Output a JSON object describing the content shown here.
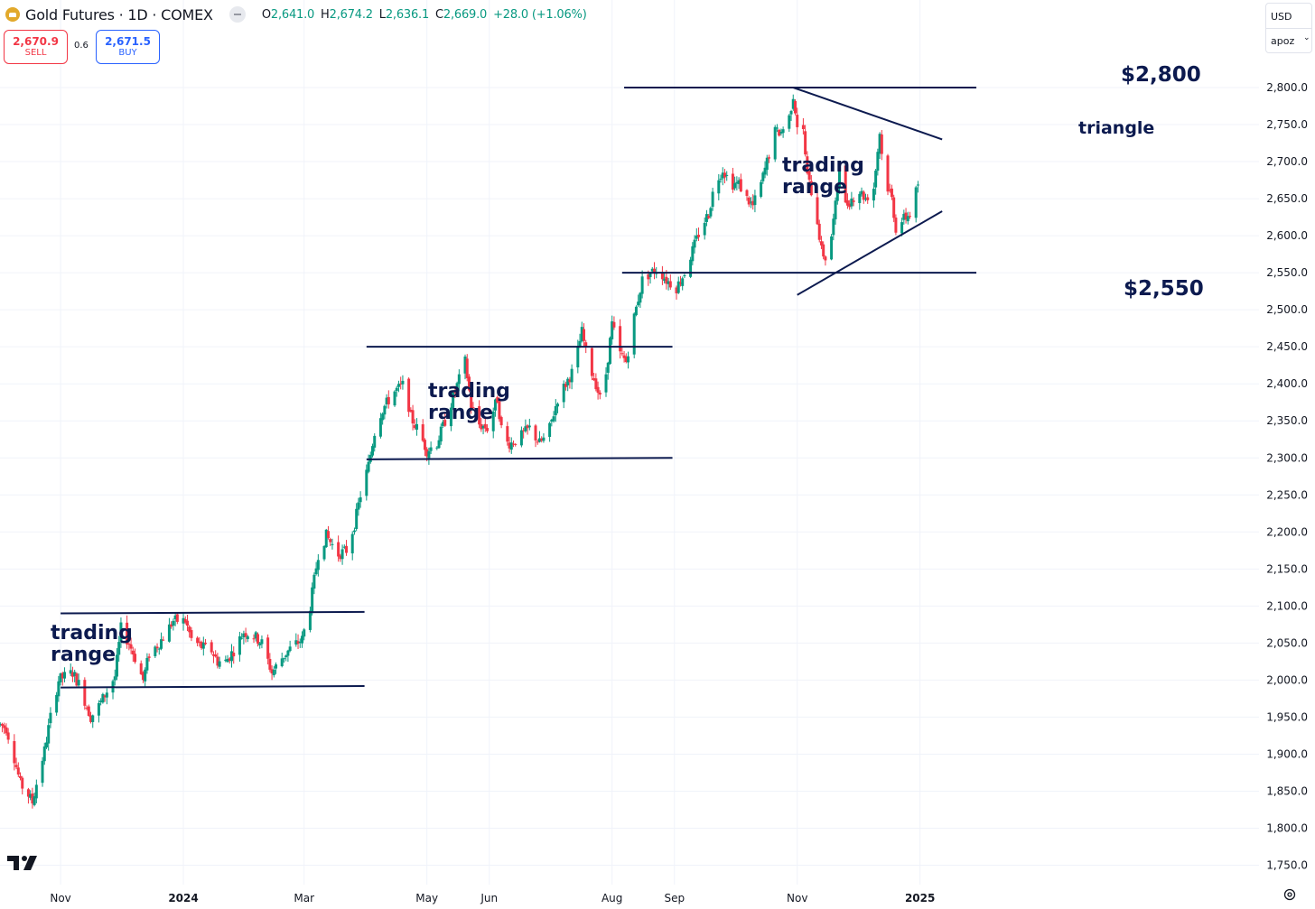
{
  "header": {
    "symbol_title": "Gold Futures · 1D · COMEX",
    "ohlc": {
      "open_label": "O",
      "open": "2,641.0",
      "high_label": "H",
      "high": "2,674.2",
      "low_label": "L",
      "low": "2,636.1",
      "close_label": "C",
      "close": "2,669.0",
      "change": "+28.0 (+1.06%)"
    }
  },
  "trade": {
    "sell_price": "2,670.9",
    "sell_label": "SELL",
    "spread": "0.6",
    "buy_price": "2,671.5",
    "buy_label": "BUY"
  },
  "controls": {
    "currency": "USD",
    "scale": "apoz"
  },
  "annotations": {
    "range1": [
      "trading",
      "range"
    ],
    "range2": [
      "trading",
      "range"
    ],
    "range3": [
      "trading",
      "range"
    ],
    "triangle": "triangle",
    "level_high": "$2,800",
    "level_low": "$2,550"
  },
  "colors": {
    "up": "#089981",
    "down": "#f23645",
    "annotation": "#0c1a4f",
    "grid": "#f0f3fa"
  },
  "chart_data": {
    "type": "candlestick",
    "title": "Gold Futures · 1D · COMEX",
    "y_ticks": [
      1750,
      1800,
      1850,
      1900,
      1950,
      2000,
      2050,
      2100,
      2150,
      2200,
      2250,
      2300,
      2350,
      2400,
      2450,
      2500,
      2550,
      2600,
      2650,
      2700,
      2750,
      2800
    ],
    "x_ticks": [
      {
        "label": "Nov",
        "date": "2023-11-01"
      },
      {
        "label": "2024",
        "date": "2024-01-01"
      },
      {
        "label": "Mar",
        "date": "2024-03-01"
      },
      {
        "label": "May",
        "date": "2024-05-01"
      },
      {
        "label": "Jun",
        "date": "2024-06-01"
      },
      {
        "label": "Aug",
        "date": "2024-08-01"
      },
      {
        "label": "Sep",
        "date": "2024-09-01"
      },
      {
        "label": "Nov",
        "date": "2024-11-01"
      },
      {
        "label": "2025",
        "date": "2025-01-01"
      }
    ],
    "grid": true,
    "close_path": [
      [
        "2023-10-02",
        1940
      ],
      [
        "2023-10-05",
        1935
      ],
      [
        "2023-10-09",
        1895
      ],
      [
        "2023-10-12",
        1860
      ],
      [
        "2023-10-16",
        1845
      ],
      [
        "2023-10-18",
        1835
      ],
      [
        "2023-10-20",
        1860
      ],
      [
        "2023-10-24",
        1905
      ],
      [
        "2023-10-27",
        1950
      ],
      [
        "2023-10-31",
        2000
      ],
      [
        "2023-11-03",
        2005
      ],
      [
        "2023-11-07",
        2010
      ],
      [
        "2023-11-10",
        1995
      ],
      [
        "2023-11-14",
        1965
      ],
      [
        "2023-11-16",
        1950
      ],
      [
        "2023-11-20",
        1965
      ],
      [
        "2023-11-24",
        1985
      ],
      [
        "2023-11-28",
        2005
      ],
      [
        "2023-12-01",
        2070
      ],
      [
        "2023-12-05",
        2050
      ],
      [
        "2023-12-08",
        2030
      ],
      [
        "2023-12-12",
        2000
      ],
      [
        "2023-12-15",
        2035
      ],
      [
        "2023-12-20",
        2050
      ],
      [
        "2023-12-27",
        2080
      ],
      [
        "2024-01-02",
        2080
      ],
      [
        "2024-01-05",
        2055
      ],
      [
        "2024-01-10",
        2045
      ],
      [
        "2024-01-15",
        2040
      ],
      [
        "2024-01-18",
        2025
      ],
      [
        "2024-01-22",
        2025
      ],
      [
        "2024-01-26",
        2040
      ],
      [
        "2024-01-31",
        2065
      ],
      [
        "2024-02-05",
        2060
      ],
      [
        "2024-02-09",
        2050
      ],
      [
        "2024-02-14",
        2010
      ],
      [
        "2024-02-19",
        2030
      ],
      [
        "2024-02-24",
        2045
      ],
      [
        "2024-02-29",
        2055
      ],
      [
        "2024-03-04",
        2100
      ],
      [
        "2024-03-08",
        2170
      ],
      [
        "2024-03-12",
        2195
      ],
      [
        "2024-03-18",
        2170
      ],
      [
        "2024-03-22",
        2175
      ],
      [
        "2024-03-26",
        2210
      ],
      [
        "2024-03-29",
        2250
      ],
      [
        "2024-04-02",
        2290
      ],
      [
        "2024-04-06",
        2350
      ],
      [
        "2024-04-10",
        2370
      ],
      [
        "2024-04-15",
        2390
      ],
      [
        "2024-04-20",
        2400
      ],
      [
        "2024-04-23",
        2355
      ],
      [
        "2024-04-27",
        2335
      ],
      [
        "2024-05-01",
        2310
      ],
      [
        "2024-05-06",
        2320
      ],
      [
        "2024-05-10",
        2350
      ],
      [
        "2024-05-15",
        2390
      ],
      [
        "2024-05-20",
        2430
      ],
      [
        "2024-05-23",
        2370
      ],
      [
        "2024-05-27",
        2345
      ],
      [
        "2024-05-31",
        2340
      ],
      [
        "2024-06-05",
        2380
      ],
      [
        "2024-06-08",
        2320
      ],
      [
        "2024-06-12",
        2320
      ],
      [
        "2024-06-17",
        2330
      ],
      [
        "2024-06-21",
        2340
      ],
      [
        "2024-06-26",
        2320
      ],
      [
        "2024-06-30",
        2330
      ],
      [
        "2024-07-05",
        2380
      ],
      [
        "2024-07-09",
        2400
      ],
      [
        "2024-07-13",
        2420
      ],
      [
        "2024-07-17",
        2470
      ],
      [
        "2024-07-20",
        2430
      ],
      [
        "2024-07-24",
        2400
      ],
      [
        "2024-07-27",
        2370
      ],
      [
        "2024-08-01",
        2480
      ],
      [
        "2024-08-05",
        2440
      ],
      [
        "2024-08-08",
        2430
      ],
      [
        "2024-08-12",
        2490
      ],
      [
        "2024-08-16",
        2540
      ],
      [
        "2024-08-20",
        2550
      ],
      [
        "2024-08-24",
        2555
      ],
      [
        "2024-08-28",
        2540
      ],
      [
        "2024-09-02",
        2530
      ],
      [
        "2024-09-06",
        2550
      ],
      [
        "2024-09-10",
        2580
      ],
      [
        "2024-09-14",
        2610
      ],
      [
        "2024-09-18",
        2630
      ],
      [
        "2024-09-21",
        2670
      ],
      [
        "2024-09-25",
        2690
      ],
      [
        "2024-09-29",
        2670
      ],
      [
        "2024-10-03",
        2670
      ],
      [
        "2024-10-07",
        2650
      ],
      [
        "2024-10-10",
        2640
      ],
      [
        "2024-10-14",
        2670
      ],
      [
        "2024-10-17",
        2700
      ],
      [
        "2024-10-21",
        2740
      ],
      [
        "2024-10-24",
        2740
      ],
      [
        "2024-10-28",
        2760
      ],
      [
        "2024-10-30",
        2790
      ],
      [
        "2024-11-01",
        2750
      ],
      [
        "2024-11-04",
        2740
      ],
      [
        "2024-11-06",
        2680
      ],
      [
        "2024-11-08",
        2660
      ],
      [
        "2024-11-11",
        2620
      ],
      [
        "2024-11-13",
        2580
      ],
      [
        "2024-11-15",
        2570
      ],
      [
        "2024-11-18",
        2600
      ],
      [
        "2024-11-20",
        2640
      ],
      [
        "2024-11-22",
        2700
      ],
      [
        "2024-11-25",
        2640
      ],
      [
        "2024-11-28",
        2650
      ],
      [
        "2024-12-02",
        2660
      ],
      [
        "2024-12-05",
        2650
      ],
      [
        "2024-12-09",
        2665
      ],
      [
        "2024-12-12",
        2740
      ],
      [
        "2024-12-14",
        2680
      ],
      [
        "2024-12-18",
        2650
      ],
      [
        "2024-12-20",
        2610
      ],
      [
        "2024-12-23",
        2620
      ],
      [
        "2024-12-27",
        2630
      ],
      [
        "2024-12-31",
        2669
      ]
    ],
    "lines": [
      {
        "name": "range1-top",
        "from": [
          "2023-11-01",
          2090
        ],
        "to": [
          "2024-03-31",
          2092
        ]
      },
      {
        "name": "range1-bottom",
        "from": [
          "2023-11-01",
          1990
        ],
        "to": [
          "2024-03-31",
          1992
        ]
      },
      {
        "name": "range2-top",
        "from": [
          "2024-04-01",
          2450
        ],
        "to": [
          "2024-08-31",
          2450
        ]
      },
      {
        "name": "range2-bottom",
        "from": [
          "2024-04-01",
          2298
        ],
        "to": [
          "2024-08-31",
          2300
        ]
      },
      {
        "name": "level-2800",
        "from": [
          "2024-08-07",
          2800
        ],
        "to": [
          "2025-01-29",
          2800
        ]
      },
      {
        "name": "level-2550",
        "from": [
          "2024-08-06",
          2550
        ],
        "to": [
          "2025-01-29",
          2550
        ]
      },
      {
        "name": "triangle-top",
        "from": [
          "2024-10-30",
          2800
        ],
        "to": [
          "2025-01-12",
          2730
        ]
      },
      {
        "name": "triangle-bottom",
        "from": [
          "2024-11-01",
          2520
        ],
        "to": [
          "2025-01-12",
          2633
        ]
      }
    ]
  }
}
